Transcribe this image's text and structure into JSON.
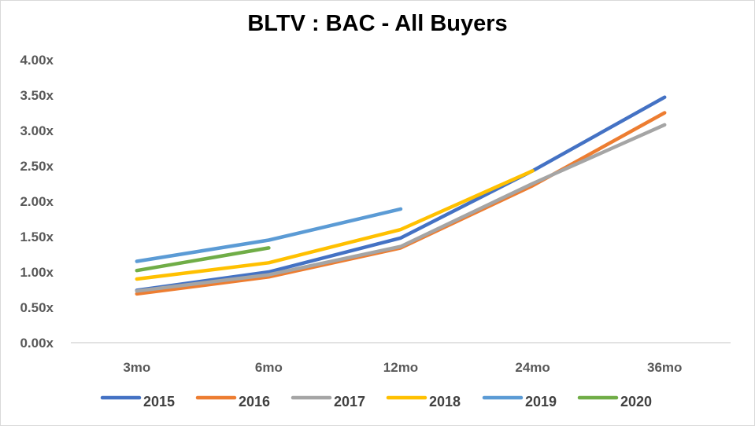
{
  "chart_data": {
    "type": "line",
    "title": "BLTV : BAC - All Buyers",
    "xlabel": "",
    "ylabel": "",
    "categories": [
      "3mo",
      "6mo",
      "12mo",
      "24mo",
      "36mo"
    ],
    "y_ticks": [
      "0.00x",
      "0.50x",
      "1.00x",
      "1.50x",
      "2.00x",
      "2.50x",
      "3.00x",
      "3.50x",
      "4.00x"
    ],
    "ylim": [
      0,
      4
    ],
    "grid": false,
    "legend_position": "bottom",
    "series": [
      {
        "name": "2015",
        "color": "#4472c4",
        "values": [
          0.74,
          1.0,
          1.48,
          2.43,
          3.47
        ]
      },
      {
        "name": "2016",
        "color": "#ed7d31",
        "values": [
          0.69,
          0.93,
          1.34,
          2.22,
          3.25
        ]
      },
      {
        "name": "2017",
        "color": "#a5a5a5",
        "values": [
          0.73,
          0.96,
          1.36,
          2.25,
          3.08
        ]
      },
      {
        "name": "2018",
        "color": "#ffc000",
        "values": [
          0.9,
          1.13,
          1.6,
          2.43,
          null
        ]
      },
      {
        "name": "2019",
        "color": "#5b9bd5",
        "values": [
          1.15,
          1.45,
          1.89,
          null,
          null
        ]
      },
      {
        "name": "2020",
        "color": "#70ad47",
        "values": [
          1.02,
          1.34,
          null,
          null,
          null
        ]
      }
    ]
  }
}
